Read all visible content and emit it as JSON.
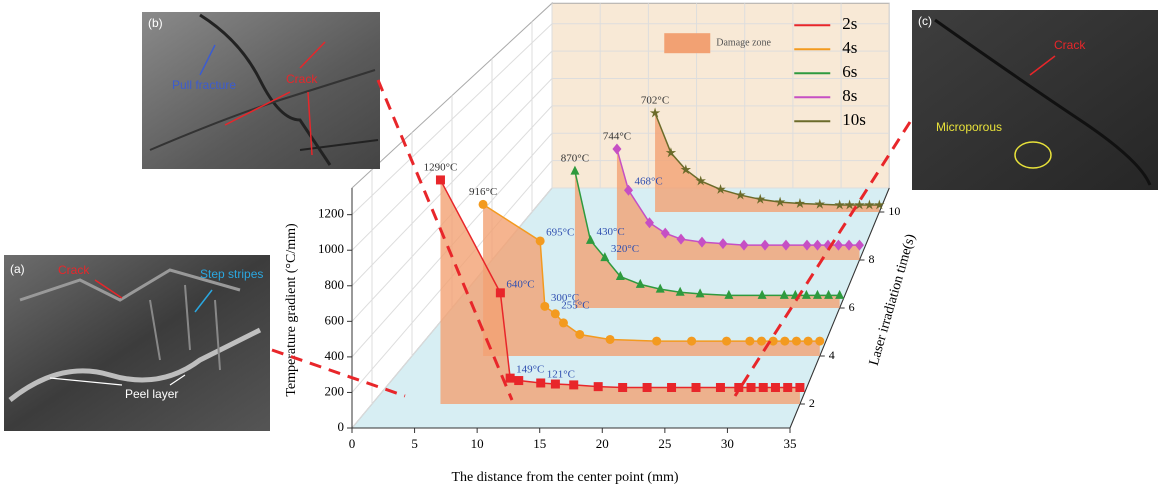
{
  "chart_data": {
    "type": "line3d",
    "xlabel": "The distance from the center point (mm)",
    "ylabel": "Temperature gradient (°C/mm)",
    "zlabel": "Laser irradiation time(s)",
    "xlim": [
      0,
      35
    ],
    "xticks": [
      0,
      5,
      10,
      15,
      20,
      25,
      30,
      35
    ],
    "ylim": [
      0,
      1350
    ],
    "yticks": [
      0,
      200,
      400,
      600,
      800,
      1000,
      1200
    ],
    "zlim": [
      1,
      11
    ],
    "zticks": [
      2,
      4,
      6,
      8,
      10
    ],
    "grid": true,
    "legend": "upper right",
    "damage_zone": {
      "name": "Damage zone",
      "color": "#f2a173"
    },
    "series": [
      {
        "name": "2s",
        "z": 2,
        "color": "#e8262a",
        "marker": "square",
        "x": [
          5.6,
          10.5,
          11.3,
          12,
          13.8,
          15,
          16.5,
          18.5,
          20.5,
          22.5,
          24.5,
          26.5,
          28.5,
          30,
          31,
          32,
          33,
          34,
          35
        ],
        "values": [
          1290,
          640,
          149,
          135,
          121,
          115,
          110,
          100,
          95,
          95,
          95,
          95,
          95,
          95,
          95,
          95,
          95,
          95,
          95
        ],
        "value_labels": [
          "1290°C",
          "640°C",
          "149°C",
          null,
          "121°C",
          null,
          null,
          null,
          null,
          null,
          null,
          null,
          null,
          null,
          null,
          null,
          null,
          null,
          null
        ]
      },
      {
        "name": "4s",
        "z": 4,
        "color": "#f39a1f",
        "marker": "circle",
        "x": [
          6.1,
          11,
          11.4,
          12.3,
          13,
          14.4,
          17,
          21,
          24,
          27,
          29,
          30,
          31,
          32,
          33,
          34,
          35
        ],
        "values": [
          916,
          695,
          300,
          255,
          200,
          130,
          100,
          90,
          90,
          90,
          90,
          90,
          90,
          90,
          90,
          90,
          90
        ],
        "value_labels": [
          "916°C",
          "695°C",
          "300°C",
          "255°C",
          null,
          null,
          null,
          null,
          null,
          null,
          null,
          null,
          null,
          null,
          null,
          null,
          null
        ]
      },
      {
        "name": "6s",
        "z": 6,
        "color": "#2e9a3e",
        "marker": "triangle",
        "x": [
          11.1,
          12.5,
          13.8,
          15.2,
          17,
          18.8,
          20.6,
          22.4,
          25,
          28,
          30,
          31,
          32,
          33,
          34,
          35
        ],
        "values": [
          870,
          430,
          320,
          200,
          150,
          120,
          100,
          90,
          80,
          80,
          80,
          80,
          80,
          80,
          80,
          80
        ],
        "value_labels": [
          "870°C",
          "430°C",
          "320°C",
          null,
          null,
          null,
          null,
          null,
          null,
          null,
          null,
          null,
          null,
          null,
          null,
          null
        ]
      },
      {
        "name": "8s",
        "z": 8,
        "color": "#c64fc4",
        "marker": "diamond",
        "x": [
          11.9,
          13,
          15,
          16.5,
          18,
          20,
          22,
          24,
          26,
          28,
          30,
          31,
          32,
          33,
          34,
          35
        ],
        "values": [
          744,
          468,
          250,
          180,
          140,
          120,
          110,
          100,
          100,
          100,
          100,
          100,
          100,
          100,
          100,
          100
        ],
        "value_labels": [
          "744°C",
          "468°C",
          null,
          null,
          null,
          null,
          null,
          null,
          null,
          null,
          null,
          null,
          null,
          null,
          null,
          null
        ]
      },
      {
        "name": "10s",
        "z": 10,
        "color": "#6b6b2a",
        "marker": "star",
        "x": [
          12.4,
          14,
          15.5,
          17,
          19,
          21,
          23,
          25,
          27,
          29,
          31,
          32,
          33,
          34,
          35
        ],
        "values": [
          702,
          420,
          300,
          220,
          160,
          120,
          90,
          70,
          60,
          55,
          50,
          50,
          50,
          50,
          50
        ],
        "value_labels": [
          "702°C",
          null,
          null,
          null,
          null,
          null,
          null,
          null,
          null,
          null,
          null,
          null,
          null,
          null,
          null
        ]
      }
    ]
  },
  "insets": {
    "a": {
      "label": "(a)",
      "texts": [
        "Crack",
        "Step stripes",
        "Peel layer"
      ]
    },
    "b": {
      "label": "(b)",
      "texts": [
        "Pull fracture",
        "Crack"
      ]
    },
    "c": {
      "label": "(c)",
      "texts": [
        "Crack",
        "Microporous"
      ]
    }
  }
}
